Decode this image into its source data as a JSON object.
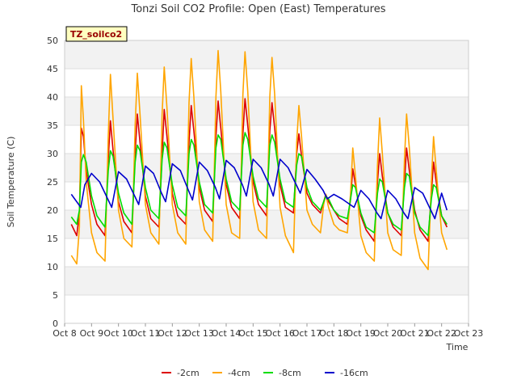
{
  "chart_data": {
    "type": "line",
    "title": "Tonzi Soil CO2 Profile: Open (East) Temperatures",
    "xlabel": "Time",
    "ylabel": "Soil Temperature (C)",
    "badge": "TZ_soilco2",
    "ylim": [
      0,
      50
    ],
    "xlim": [
      8,
      23
    ],
    "yticks": [
      0,
      5,
      10,
      15,
      20,
      25,
      30,
      35,
      40,
      45,
      50
    ],
    "xticks": [
      {
        "value": 8,
        "label": "Oct 8"
      },
      {
        "value": 9,
        "label": "Oct 9"
      },
      {
        "value": 10,
        "label": "Oct 10"
      },
      {
        "value": 11,
        "label": "Oct 11"
      },
      {
        "value": 12,
        "label": "Oct 12"
      },
      {
        "value": 13,
        "label": "Oct 13"
      },
      {
        "value": 14,
        "label": "Oct 14"
      },
      {
        "value": 15,
        "label": "Oct 15"
      },
      {
        "value": 16,
        "label": "Oct 16"
      },
      {
        "value": 17,
        "label": "Oct 17"
      },
      {
        "value": 18,
        "label": "Oct 18"
      },
      {
        "value": 19,
        "label": "Oct 19"
      },
      {
        "value": 20,
        "label": "Oct 20"
      },
      {
        "value": 21,
        "label": "Oct 21"
      },
      {
        "value": 22,
        "label": "Oct 22"
      },
      {
        "value": 23,
        "label": "Oct 23"
      }
    ],
    "grid": true,
    "legend_position": "bottom-center",
    "series": [
      {
        "name": "-2cm",
        "color": "#dd0000",
        "x": [
          8.25,
          8.45,
          8.55,
          8.62,
          8.7,
          8.8,
          9.0,
          9.2,
          9.5,
          9.62,
          9.7,
          9.8,
          10.0,
          10.2,
          10.5,
          10.62,
          10.7,
          10.8,
          11.0,
          11.2,
          11.5,
          11.62,
          11.7,
          11.8,
          12.0,
          12.2,
          12.5,
          12.62,
          12.7,
          12.8,
          13.0,
          13.2,
          13.5,
          13.62,
          13.7,
          13.8,
          14.0,
          14.2,
          14.5,
          14.62,
          14.7,
          14.8,
          15.0,
          15.2,
          15.5,
          15.62,
          15.7,
          15.8,
          16.0,
          16.2,
          16.5,
          16.62,
          16.7,
          16.8,
          17.0,
          17.2,
          17.5,
          17.62,
          17.7,
          17.8,
          18.0,
          18.2,
          18.5,
          18.62,
          18.7,
          18.8,
          19.0,
          19.2,
          19.5,
          19.62,
          19.7,
          19.8,
          20.0,
          20.2,
          20.5,
          20.62,
          20.7,
          20.8,
          21.0,
          21.2,
          21.5,
          21.62,
          21.7,
          21.8,
          22.0,
          22.2
        ],
        "y": [
          17.5,
          15.5,
          19.5,
          34.5,
          33.0,
          27.0,
          21.0,
          17.5,
          15.5,
          29.0,
          35.8,
          30.5,
          21.5,
          18.0,
          16.0,
          30.0,
          37.0,
          32.0,
          22.5,
          18.5,
          17.0,
          30.0,
          37.8,
          33.0,
          23.0,
          19.0,
          17.5,
          32.0,
          38.5,
          34.0,
          24.0,
          20.0,
          18.0,
          33.0,
          39.3,
          34.5,
          24.5,
          20.5,
          18.5,
          33.5,
          39.7,
          35.0,
          25.0,
          21.0,
          19.0,
          34.0,
          39.0,
          34.5,
          24.5,
          20.5,
          19.5,
          30.0,
          33.5,
          29.5,
          23.0,
          21.0,
          19.5,
          21.5,
          22.8,
          21.5,
          20.0,
          18.5,
          17.5,
          22.0,
          27.3,
          24.5,
          19.0,
          16.5,
          14.5,
          25.0,
          30.0,
          26.0,
          19.5,
          17.0,
          15.5,
          25.0,
          31.0,
          27.0,
          20.0,
          16.5,
          14.5,
          23.0,
          28.5,
          25.0,
          19.0,
          17.0
        ]
      },
      {
        "name": "-4cm",
        "color": "#ffa500",
        "x": [
          8.25,
          8.45,
          8.55,
          8.62,
          8.7,
          8.8,
          9.0,
          9.2,
          9.5,
          9.62,
          9.7,
          9.8,
          10.0,
          10.2,
          10.5,
          10.62,
          10.7,
          10.8,
          11.0,
          11.2,
          11.5,
          11.62,
          11.7,
          11.8,
          12.0,
          12.2,
          12.5,
          12.62,
          12.7,
          12.8,
          13.0,
          13.2,
          13.5,
          13.62,
          13.7,
          13.8,
          14.0,
          14.2,
          14.5,
          14.62,
          14.7,
          14.8,
          15.0,
          15.2,
          15.5,
          15.62,
          15.7,
          15.8,
          16.0,
          16.2,
          16.5,
          16.62,
          16.7,
          16.8,
          17.0,
          17.2,
          17.5,
          17.62,
          17.7,
          17.8,
          18.0,
          18.2,
          18.5,
          18.62,
          18.7,
          18.8,
          19.0,
          19.2,
          19.5,
          19.62,
          19.7,
          19.8,
          20.0,
          20.2,
          20.5,
          20.62,
          20.7,
          20.8,
          21.0,
          21.2,
          21.5,
          21.62,
          21.7,
          21.8,
          22.0,
          22.2
        ],
        "y": [
          12.0,
          10.5,
          17.0,
          42.0,
          36.0,
          25.0,
          16.0,
          12.5,
          11.0,
          33.0,
          44.0,
          36.0,
          20.0,
          15.0,
          13.5,
          35.0,
          44.2,
          37.0,
          21.0,
          16.0,
          14.0,
          37.0,
          45.3,
          38.0,
          21.0,
          16.0,
          14.0,
          39.0,
          46.8,
          40.0,
          21.5,
          16.5,
          14.5,
          40.0,
          48.2,
          41.0,
          21.0,
          16.0,
          15.0,
          40.5,
          48.0,
          41.0,
          21.5,
          16.5,
          15.0,
          40.0,
          47.0,
          40.5,
          20.5,
          15.5,
          12.5,
          32.0,
          38.5,
          33.0,
          20.0,
          17.5,
          16.0,
          21.0,
          22.8,
          20.5,
          17.5,
          16.5,
          16.0,
          23.0,
          31.0,
          26.0,
          15.5,
          12.5,
          11.0,
          28.0,
          36.3,
          30.0,
          16.0,
          13.0,
          12.0,
          29.0,
          37.0,
          31.0,
          16.0,
          11.5,
          9.5,
          25.0,
          33.0,
          27.0,
          16.0,
          13.0
        ]
      },
      {
        "name": "-8cm",
        "color": "#00dd00",
        "x": [
          8.25,
          8.45,
          8.55,
          8.62,
          8.7,
          8.8,
          9.0,
          9.2,
          9.5,
          9.62,
          9.7,
          9.8,
          10.0,
          10.2,
          10.5,
          10.62,
          10.7,
          10.8,
          11.0,
          11.2,
          11.5,
          11.62,
          11.7,
          11.8,
          12.0,
          12.2,
          12.5,
          12.62,
          12.7,
          12.8,
          13.0,
          13.2,
          13.5,
          13.62,
          13.7,
          13.8,
          14.0,
          14.2,
          14.5,
          14.62,
          14.7,
          14.8,
          15.0,
          15.2,
          15.5,
          15.62,
          15.7,
          15.8,
          16.0,
          16.2,
          16.5,
          16.62,
          16.7,
          16.8,
          17.0,
          17.2,
          17.5,
          17.62,
          17.7,
          17.8,
          18.0,
          18.2,
          18.5,
          18.62,
          18.7,
          18.8,
          19.0,
          19.2,
          19.5,
          19.62,
          19.7,
          19.8,
          20.0,
          20.2,
          20.5,
          20.62,
          20.7,
          20.8,
          21.0,
          21.2,
          21.5,
          21.62,
          21.7,
          21.8,
          22.0,
          22.2
        ],
        "y": [
          18.8,
          17.5,
          20.0,
          28.5,
          29.8,
          28.5,
          22.5,
          19.0,
          17.0,
          27.0,
          30.5,
          29.5,
          23.0,
          19.5,
          17.5,
          28.5,
          31.5,
          30.5,
          24.0,
          20.0,
          18.5,
          29.0,
          32.0,
          31.0,
          24.5,
          20.5,
          19.0,
          30.0,
          32.5,
          31.5,
          25.0,
          21.0,
          19.5,
          31.0,
          33.3,
          32.5,
          25.5,
          21.5,
          20.0,
          31.5,
          33.7,
          32.5,
          26.0,
          22.0,
          20.5,
          31.5,
          33.3,
          32.0,
          25.5,
          21.5,
          20.5,
          28.0,
          30.0,
          29.5,
          24.0,
          21.5,
          20.0,
          21.5,
          22.5,
          22.0,
          20.0,
          19.0,
          18.5,
          22.0,
          24.5,
          24.0,
          19.5,
          17.0,
          16.0,
          23.0,
          25.5,
          25.0,
          19.5,
          17.5,
          16.5,
          24.0,
          26.5,
          26.0,
          19.5,
          17.0,
          15.5,
          22.0,
          24.5,
          24.0,
          19.0,
          17.5
        ]
      },
      {
        "name": "-16cm",
        "color": "#0000cc",
        "x": [
          8.25,
          8.6,
          8.75,
          9.0,
          9.3,
          9.6,
          9.75,
          10.0,
          10.3,
          10.6,
          10.75,
          11.0,
          11.3,
          11.6,
          11.75,
          12.0,
          12.3,
          12.6,
          12.75,
          13.0,
          13.3,
          13.6,
          13.75,
          14.0,
          14.3,
          14.6,
          14.75,
          15.0,
          15.3,
          15.6,
          15.75,
          16.0,
          16.3,
          16.6,
          16.75,
          17.0,
          17.3,
          17.6,
          17.75,
          18.0,
          18.3,
          18.6,
          18.75,
          19.0,
          19.3,
          19.6,
          19.75,
          20.0,
          20.3,
          20.6,
          20.75,
          21.0,
          21.3,
          21.6,
          21.75,
          22.0,
          22.2
        ],
        "y": [
          22.8,
          20.5,
          24.5,
          26.5,
          25.0,
          22.0,
          20.5,
          26.8,
          25.5,
          22.5,
          21.0,
          27.8,
          26.5,
          23.0,
          21.5,
          28.2,
          27.0,
          23.5,
          21.8,
          28.5,
          27.0,
          24.0,
          22.0,
          28.8,
          27.5,
          24.5,
          22.5,
          29.0,
          27.5,
          24.5,
          22.5,
          29.0,
          27.5,
          24.5,
          23.0,
          27.2,
          25.5,
          23.5,
          22.0,
          22.8,
          22.0,
          21.0,
          20.5,
          23.5,
          22.0,
          19.5,
          18.5,
          23.5,
          22.0,
          19.5,
          18.5,
          24.0,
          23.0,
          20.0,
          18.5,
          23.0,
          20.0
        ]
      }
    ]
  }
}
